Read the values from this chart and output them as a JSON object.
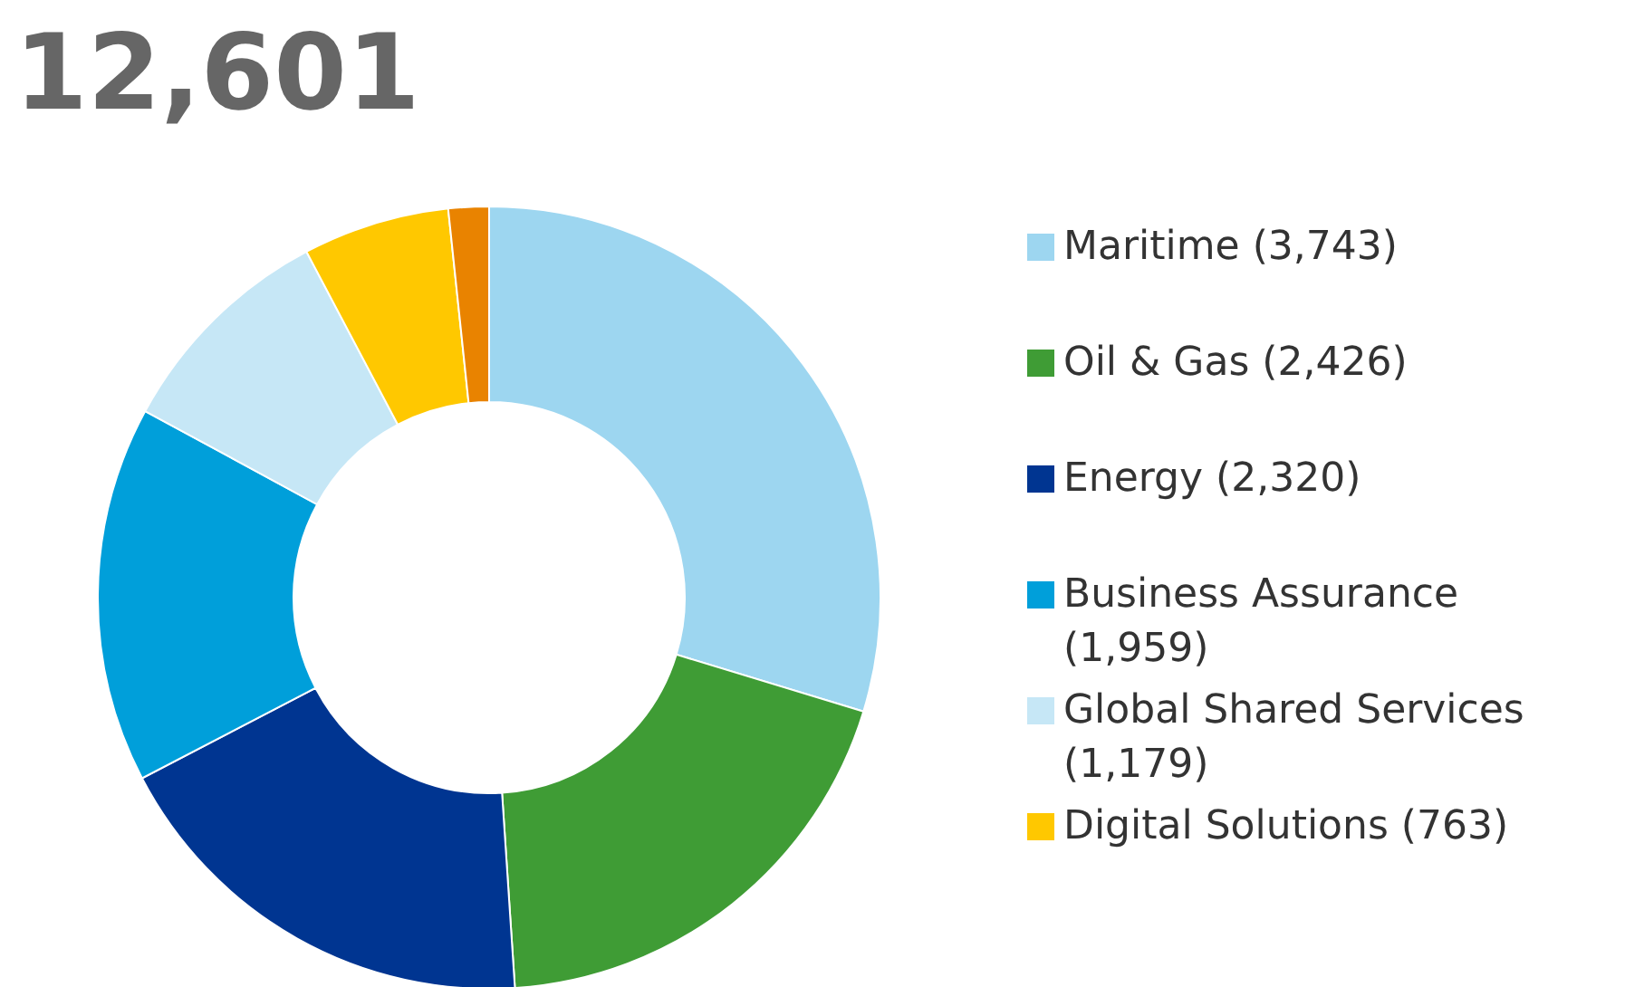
{
  "chart_data": {
    "type": "donut",
    "title": "12,601",
    "legend": "right",
    "categories": [
      "Maritime (3,743)",
      "Oil & Gas (2,426)",
      "Energy (2,320)",
      "Business Assurance (1,959)",
      "Global Shared Services (1,179)",
      "Digital Solutions (763)",
      null
    ],
    "values": [
      29.7,
      19.25,
      18.41,
      15.55,
      9.36,
      6.06,
      1.67
    ],
    "colors": [
      "#9dd6f0",
      "#3f9c35",
      "#003591",
      "#009fda",
      "#c6e7f6",
      "#ffc800",
      "#e98300"
    ]
  }
}
